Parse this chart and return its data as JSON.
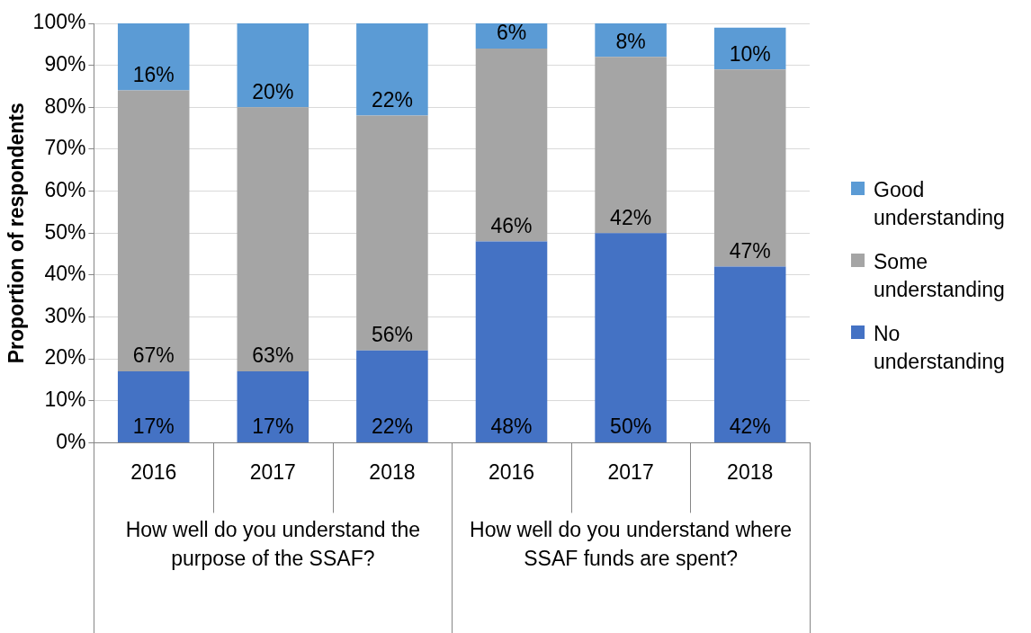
{
  "chart_data": {
    "type": "bar",
    "stacked": true,
    "ylabel": "Proportion of respondents",
    "categories": [
      "2016",
      "2017",
      "2018",
      "2016",
      "2017",
      "2018"
    ],
    "series": [
      {
        "name": "No understanding",
        "color": "#4472c4",
        "values": [
          17,
          17,
          22,
          48,
          50,
          42
        ],
        "value_labels": [
          "17%",
          "17%",
          "22%",
          "48%",
          "50%",
          "42%"
        ]
      },
      {
        "name": "Some understanding",
        "color": "#a5a5a5",
        "values": [
          67,
          63,
          56,
          46,
          42,
          47
        ],
        "value_labels": [
          "67%",
          "63%",
          "56%",
          "46%",
          "42%",
          "47%"
        ]
      },
      {
        "name": "Good understanding",
        "color": "#5b9bd5",
        "values": [
          16,
          20,
          22,
          6,
          8,
          10
        ],
        "value_labels": [
          "16%",
          "20%",
          "22%",
          "6%",
          "8%",
          "10%"
        ]
      }
    ],
    "ylim": [
      0,
      100
    ],
    "yticks": [
      {
        "value": 0,
        "label": "0%"
      },
      {
        "value": 10,
        "label": "10%"
      },
      {
        "value": 20,
        "label": "20%"
      },
      {
        "value": 30,
        "label": "30%"
      },
      {
        "value": 40,
        "label": "40%"
      },
      {
        "value": 50,
        "label": "50%"
      },
      {
        "value": 60,
        "label": "60%"
      },
      {
        "value": 70,
        "label": "70%"
      },
      {
        "value": 80,
        "label": "80%"
      },
      {
        "value": 90,
        "label": "90%"
      },
      {
        "value": 100,
        "label": "100%"
      }
    ],
    "annotations": [
      "How well do you understand the purpose of the SSAF?",
      "How well do you understand where SSAF funds are spent?"
    ],
    "grid": "y",
    "legend": "right"
  }
}
